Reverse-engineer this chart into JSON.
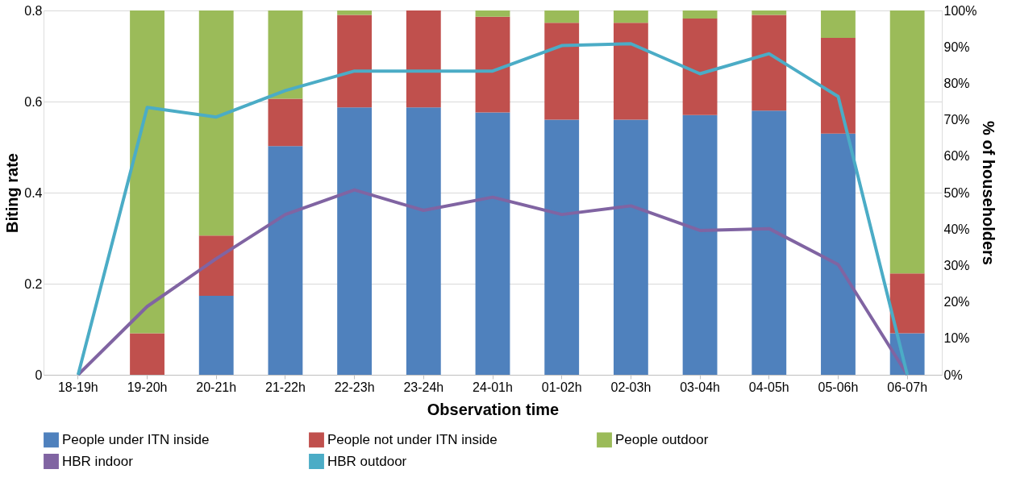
{
  "chart_data": {
    "type": "bar",
    "stacked": true,
    "xlabel": "Observation time",
    "ylabel": "Biting rate",
    "y2label": "% of householders",
    "categories": [
      "18-19h",
      "19-20h",
      "20-21h",
      "21-22h",
      "22-23h",
      "23-24h",
      "24-01h",
      "01-02h",
      "02-03h",
      "03-04h",
      "04-05h",
      "05-06h",
      "06-07h"
    ],
    "series": [
      {
        "name": "People under ITN inside",
        "color": "#4f81bd",
        "axis": "y2",
        "values": [
          0,
          0,
          21.7,
          62.8,
          73.4,
          73.4,
          72,
          70,
          70,
          71.3,
          72.5,
          66.2,
          11.4
        ]
      },
      {
        "name": "People not under ITN inside",
        "color": "#c0504d",
        "axis": "y2",
        "values": [
          0,
          11.4,
          16.5,
          13,
          25.4,
          26.6,
          26.3,
          26.6,
          26.6,
          26.5,
          26.3,
          26.3,
          16.4
        ]
      },
      {
        "name": "People outdoor",
        "color": "#9bbb59",
        "axis": "y2",
        "values": [
          0,
          88.6,
          61.8,
          24.2,
          1.2,
          0,
          1.7,
          3.4,
          3.4,
          2.2,
          1.2,
          7.5,
          72.2
        ]
      },
      {
        "name": "HBR indoor",
        "color": "#8064a2",
        "type": "line",
        "axis": "y",
        "values": [
          0,
          0.15,
          0.255,
          0.352,
          0.406,
          0.361,
          0.39,
          0.352,
          0.371,
          0.317,
          0.321,
          0.242,
          0
        ]
      },
      {
        "name": "HBR outdoor",
        "color": "#4bacc6",
        "type": "line",
        "axis": "y",
        "values": [
          0,
          0.587,
          0.566,
          0.624,
          0.667,
          0.667,
          0.667,
          0.723,
          0.727,
          0.661,
          0.705,
          0.611,
          0
        ]
      }
    ],
    "ylim": [
      0,
      0.8
    ],
    "yticks": [
      {
        "value": 0,
        "label": "0"
      },
      0.2,
      0.4,
      0.6,
      0.8
    ],
    "y2lim": [
      0,
      100
    ],
    "y2ticks": [
      {
        "value": 0,
        "label": "0%"
      },
      {
        "value": 10,
        "label": "10%"
      },
      {
        "value": 20,
        "label": "20%"
      },
      {
        "value": 30,
        "label": "30%"
      },
      {
        "value": 40,
        "label": "40%"
      },
      {
        "value": 50,
        "label": "50%"
      },
      {
        "value": 60,
        "label": "60%"
      },
      {
        "value": 70,
        "label": "70%"
      },
      {
        "value": 80,
        "label": "80%"
      },
      {
        "value": 90,
        "label": "90%"
      },
      {
        "value": 100,
        "label": "100%"
      }
    ],
    "grid": "y",
    "legend": "bottom",
    "marker": "none",
    "line_style": "solid"
  }
}
